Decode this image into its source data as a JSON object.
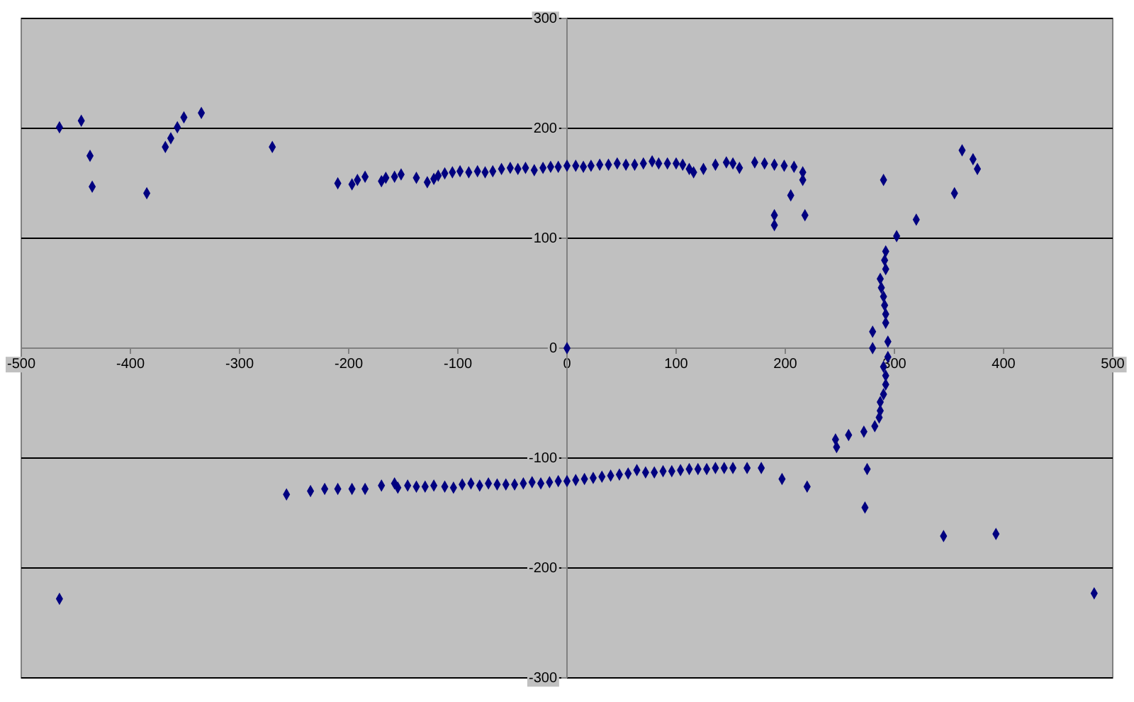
{
  "chart_data": {
    "type": "scatter",
    "x": [
      -465,
      -445,
      -437,
      -435,
      -385,
      -368,
      -363,
      -357,
      -351,
      -335,
      -270,
      -210,
      -197,
      -192,
      -185,
      -170,
      -166,
      -158,
      -152,
      -138,
      -128,
      -122,
      -118,
      -112,
      -105,
      -98,
      -90,
      -82,
      -75,
      -68,
      -60,
      -52,
      -45,
      -38,
      -30,
      -22,
      -15,
      -8,
      0,
      8,
      15,
      22,
      30,
      38,
      46,
      54,
      62,
      70,
      78,
      84,
      92,
      100,
      106,
      112,
      116,
      125,
      136,
      146,
      152,
      158,
      172,
      181,
      190,
      199,
      208,
      216,
      216,
      205,
      190,
      190,
      218,
      290,
      302,
      320,
      355,
      362,
      372,
      376,
      292,
      291,
      292,
      287,
      288,
      290,
      291,
      292,
      292,
      280,
      294,
      280,
      294,
      290,
      292,
      292,
      290,
      287,
      287,
      286,
      282,
      272,
      258,
      246,
      247,
      275,
      273,
      220,
      197,
      345,
      393,
      483,
      -465,
      0,
      -257,
      -235,
      -222,
      -210,
      -197,
      -185,
      -170,
      -158,
      -155,
      -146,
      -138,
      -130,
      -122,
      -112,
      -104,
      -96,
      -88,
      -80,
      -72,
      -64,
      -56,
      -48,
      -40,
      -32,
      -24,
      -16,
      -8,
      0,
      8,
      16,
      24,
      32,
      40,
      48,
      56,
      64,
      72,
      80,
      88,
      96,
      104,
      112,
      120,
      128,
      136,
      144,
      152,
      165,
      178
    ],
    "values": [
      201,
      207,
      175,
      147,
      141,
      183,
      191,
      201,
      210,
      214,
      183,
      150,
      149,
      153,
      156,
      152,
      155,
      156,
      158,
      155,
      151,
      154,
      157,
      159,
      160,
      161,
      160,
      161,
      160,
      161,
      163,
      164,
      163,
      164,
      162,
      164,
      165,
      165,
      166,
      166,
      165,
      166,
      167,
      167,
      168,
      167,
      167,
      168,
      170,
      168,
      168,
      168,
      167,
      163,
      160,
      163,
      167,
      169,
      168,
      164,
      169,
      168,
      167,
      166,
      165,
      160,
      153,
      139,
      121,
      112,
      121,
      153,
      102,
      117,
      141,
      180,
      172,
      163,
      88,
      80,
      72,
      63,
      55,
      47,
      39,
      31,
      23,
      15,
      6,
      0,
      -8,
      -17,
      -25,
      -33,
      -42,
      -49,
      -57,
      -63,
      -71,
      -76,
      -79,
      -83,
      -90,
      -110,
      -145,
      -126,
      -119,
      -171,
      -169,
      -223,
      -228,
      0,
      -133,
      -130,
      -128,
      -128,
      -128,
      -128,
      -125,
      -123,
      -127,
      -125,
      -126,
      -126,
      -125,
      -126,
      -127,
      -124,
      -123,
      -125,
      -123,
      -124,
      -124,
      -124,
      -123,
      -122,
      -123,
      -122,
      -121,
      -121,
      -120,
      -119,
      -118,
      -117,
      -116,
      -115,
      -114,
      -111,
      -113,
      -113,
      -112,
      -112,
      -111,
      -110,
      -110,
      -110,
      -109,
      -109,
      -109,
      -109,
      -109
    ],
    "color": "#000080",
    "marker": "diamond",
    "xlim": [
      -500,
      500
    ],
    "xticks": [
      -500,
      -400,
      -300,
      -200,
      -100,
      0,
      100,
      200,
      300,
      400,
      500
    ],
    "ylim": [
      -300,
      300
    ],
    "yticks": [
      -300,
      -200,
      -100,
      0,
      100,
      200,
      300
    ],
    "grid": "y"
  }
}
